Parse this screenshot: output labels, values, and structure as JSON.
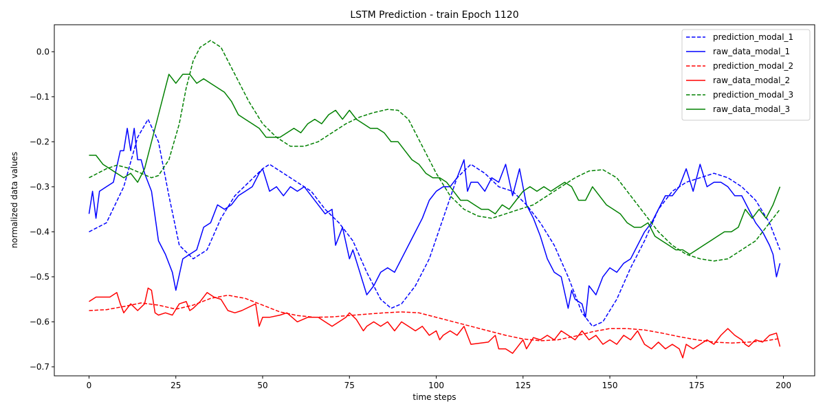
{
  "chart_data": {
    "type": "line",
    "title": "LSTM Prediction - train Epoch 1120",
    "xlabel": "time steps",
    "ylabel": "normalized data values",
    "xlim": [
      -10,
      209
    ],
    "ylim": [
      -0.72,
      0.06
    ],
    "xticks": [
      0,
      25,
      50,
      75,
      100,
      125,
      150,
      175,
      200
    ],
    "yticks": [
      0.0,
      -0.1,
      -0.2,
      -0.3,
      -0.4,
      -0.5,
      -0.6,
      -0.7
    ],
    "ytick_labels": [
      "0.0",
      "−0.1",
      "−0.2",
      "−0.3",
      "−0.4",
      "−0.5",
      "−0.6",
      "−0.7"
    ],
    "grid": false,
    "legend_position": "top-right",
    "colors": {
      "modal_1": "#0000ff",
      "modal_2": "#ff0000",
      "modal_3": "#008000"
    },
    "series": [
      {
        "name": "prediction_modal_1",
        "color": "#0000ff",
        "style": "dashed",
        "x": [
          0,
          5,
          10,
          14,
          17,
          20,
          23,
          26,
          30,
          34,
          38,
          42,
          46,
          50,
          52,
          56,
          60,
          64,
          68,
          72,
          76,
          80,
          84,
          87,
          90,
          94,
          98,
          102,
          106,
          110,
          114,
          118,
          122,
          126,
          130,
          134,
          138,
          142,
          145,
          148,
          152,
          156,
          160,
          164,
          168,
          172,
          176,
          180,
          184,
          188,
          192,
          196,
          199
        ],
        "y": [
          -0.4,
          -0.38,
          -0.3,
          -0.19,
          -0.15,
          -0.2,
          -0.32,
          -0.43,
          -0.46,
          -0.44,
          -0.37,
          -0.32,
          -0.29,
          -0.26,
          -0.25,
          -0.27,
          -0.29,
          -0.31,
          -0.35,
          -0.38,
          -0.42,
          -0.49,
          -0.55,
          -0.57,
          -0.56,
          -0.52,
          -0.46,
          -0.37,
          -0.28,
          -0.25,
          -0.27,
          -0.3,
          -0.31,
          -0.34,
          -0.38,
          -0.43,
          -0.5,
          -0.58,
          -0.61,
          -0.6,
          -0.55,
          -0.48,
          -0.42,
          -0.35,
          -0.31,
          -0.29,
          -0.28,
          -0.27,
          -0.28,
          -0.3,
          -0.33,
          -0.38,
          -0.44
        ]
      },
      {
        "name": "raw_data_modal_1",
        "color": "#0000ff",
        "style": "solid",
        "x": [
          0,
          1,
          2,
          3,
          5,
          7,
          9,
          10,
          11,
          12,
          13,
          14,
          15,
          16,
          18,
          20,
          22,
          24,
          25,
          27,
          29,
          31,
          33,
          35,
          37,
          39,
          41,
          43,
          45,
          47,
          49,
          50,
          52,
          54,
          56,
          58,
          60,
          62,
          64,
          66,
          68,
          70,
          71,
          73,
          75,
          76,
          78,
          80,
          82,
          84,
          86,
          88,
          90,
          92,
          94,
          96,
          98,
          100,
          102,
          104,
          106,
          108,
          109,
          110,
          112,
          114,
          116,
          118,
          120,
          122,
          124,
          126,
          128,
          130,
          132,
          134,
          136,
          138,
          139,
          140,
          142,
          143,
          144,
          146,
          148,
          150,
          152,
          154,
          156,
          158,
          160,
          162,
          164,
          166,
          168,
          170,
          172,
          174,
          176,
          178,
          180,
          182,
          184,
          186,
          188,
          190,
          192,
          194,
          196,
          197,
          198,
          199
        ],
        "y": [
          -0.36,
          -0.31,
          -0.37,
          -0.31,
          -0.3,
          -0.29,
          -0.22,
          -0.22,
          -0.17,
          -0.22,
          -0.17,
          -0.24,
          -0.24,
          -0.27,
          -0.31,
          -0.42,
          -0.45,
          -0.49,
          -0.53,
          -0.46,
          -0.45,
          -0.44,
          -0.39,
          -0.38,
          -0.34,
          -0.35,
          -0.34,
          -0.32,
          -0.31,
          -0.3,
          -0.27,
          -0.26,
          -0.31,
          -0.3,
          -0.32,
          -0.3,
          -0.31,
          -0.3,
          -0.32,
          -0.34,
          -0.36,
          -0.35,
          -0.43,
          -0.39,
          -0.46,
          -0.44,
          -0.49,
          -0.54,
          -0.52,
          -0.49,
          -0.48,
          -0.49,
          -0.46,
          -0.43,
          -0.4,
          -0.37,
          -0.33,
          -0.31,
          -0.3,
          -0.3,
          -0.28,
          -0.24,
          -0.31,
          -0.29,
          -0.29,
          -0.31,
          -0.28,
          -0.29,
          -0.25,
          -0.32,
          -0.26,
          -0.34,
          -0.37,
          -0.41,
          -0.46,
          -0.49,
          -0.5,
          -0.57,
          -0.53,
          -0.55,
          -0.56,
          -0.59,
          -0.52,
          -0.54,
          -0.5,
          -0.48,
          -0.49,
          -0.47,
          -0.46,
          -0.43,
          -0.4,
          -0.38,
          -0.35,
          -0.32,
          -0.32,
          -0.3,
          -0.26,
          -0.31,
          -0.25,
          -0.3,
          -0.29,
          -0.29,
          -0.3,
          -0.32,
          -0.32,
          -0.35,
          -0.38,
          -0.4,
          -0.43,
          -0.45,
          -0.5,
          -0.47
        ]
      },
      {
        "name": "prediction_modal_2",
        "color": "#ff0000",
        "style": "dashed",
        "x": [
          0,
          5,
          10,
          15,
          20,
          25,
          30,
          35,
          40,
          45,
          50,
          55,
          60,
          65,
          70,
          75,
          80,
          85,
          90,
          95,
          100,
          105,
          110,
          115,
          120,
          125,
          130,
          135,
          140,
          145,
          150,
          155,
          160,
          165,
          170,
          175,
          180,
          185,
          190,
          195,
          199
        ],
        "y": [
          -0.575,
          -0.573,
          -0.566,
          -0.558,
          -0.563,
          -0.572,
          -0.563,
          -0.548,
          -0.541,
          -0.548,
          -0.563,
          -0.578,
          -0.586,
          -0.59,
          -0.589,
          -0.586,
          -0.583,
          -0.58,
          -0.578,
          -0.58,
          -0.59,
          -0.6,
          -0.61,
          -0.62,
          -0.63,
          -0.638,
          -0.642,
          -0.64,
          -0.632,
          -0.622,
          -0.615,
          -0.615,
          -0.618,
          -0.625,
          -0.633,
          -0.64,
          -0.645,
          -0.647,
          -0.645,
          -0.642,
          -0.637
        ]
      },
      {
        "name": "raw_data_modal_2",
        "color": "#ff0000",
        "style": "solid",
        "x": [
          0,
          2,
          4,
          6,
          8,
          9,
          10,
          12,
          14,
          16,
          17,
          18,
          19,
          20,
          22,
          24,
          26,
          28,
          29,
          30,
          32,
          34,
          36,
          38,
          40,
          42,
          44,
          48,
          49,
          50,
          52,
          55,
          57,
          60,
          63,
          66,
          68,
          70,
          72,
          74,
          75,
          77,
          79,
          80,
          82,
          84,
          86,
          88,
          89,
          90,
          92,
          94,
          96,
          98,
          100,
          101,
          102,
          104,
          106,
          108,
          110,
          115,
          117,
          118,
          120,
          122,
          124,
          125,
          126,
          128,
          130,
          132,
          134,
          136,
          138,
          140,
          142,
          144,
          146,
          148,
          150,
          152,
          154,
          156,
          158,
          160,
          162,
          164,
          166,
          168,
          170,
          171,
          172,
          174,
          176,
          178,
          180,
          182,
          184,
          186,
          188,
          189,
          190,
          192,
          194,
          196,
          198,
          199
        ],
        "y": [
          -0.555,
          -0.545,
          -0.545,
          -0.545,
          -0.535,
          -0.56,
          -0.58,
          -0.56,
          -0.575,
          -0.56,
          -0.525,
          -0.53,
          -0.58,
          -0.585,
          -0.58,
          -0.585,
          -0.56,
          -0.555,
          -0.575,
          -0.57,
          -0.555,
          -0.535,
          -0.545,
          -0.55,
          -0.575,
          -0.58,
          -0.575,
          -0.56,
          -0.61,
          -0.59,
          -0.59,
          -0.585,
          -0.58,
          -0.6,
          -0.59,
          -0.59,
          -0.6,
          -0.61,
          -0.6,
          -0.59,
          -0.58,
          -0.595,
          -0.62,
          -0.61,
          -0.6,
          -0.61,
          -0.6,
          -0.62,
          -0.61,
          -0.6,
          -0.61,
          -0.62,
          -0.61,
          -0.63,
          -0.62,
          -0.64,
          -0.63,
          -0.62,
          -0.63,
          -0.61,
          -0.65,
          -0.645,
          -0.63,
          -0.66,
          -0.66,
          -0.67,
          -0.65,
          -0.64,
          -0.66,
          -0.635,
          -0.64,
          -0.63,
          -0.64,
          -0.62,
          -0.63,
          -0.64,
          -0.62,
          -0.64,
          -0.63,
          -0.65,
          -0.64,
          -0.65,
          -0.63,
          -0.64,
          -0.62,
          -0.65,
          -0.66,
          -0.645,
          -0.66,
          -0.65,
          -0.66,
          -0.68,
          -0.65,
          -0.66,
          -0.65,
          -0.64,
          -0.65,
          -0.63,
          -0.615,
          -0.63,
          -0.64,
          -0.65,
          -0.655,
          -0.64,
          -0.645,
          -0.63,
          -0.625,
          -0.655
        ]
      },
      {
        "name": "prediction_modal_3",
        "color": "#008000",
        "style": "dashed",
        "x": [
          0,
          5,
          8,
          12,
          15,
          18,
          20,
          23,
          26,
          28,
          30,
          32,
          35,
          38,
          42,
          46,
          50,
          54,
          58,
          62,
          66,
          70,
          74,
          78,
          82,
          86,
          89,
          92,
          96,
          100,
          104,
          108,
          112,
          116,
          120,
          124,
          128,
          132,
          136,
          140,
          144,
          148,
          152,
          156,
          160,
          164,
          168,
          172,
          176,
          180,
          184,
          188,
          192,
          196,
          199
        ],
        "y": [
          -0.28,
          -0.26,
          -0.252,
          -0.26,
          -0.27,
          -0.28,
          -0.275,
          -0.24,
          -0.16,
          -0.08,
          -0.02,
          0.01,
          0.025,
          0.01,
          -0.05,
          -0.11,
          -0.16,
          -0.19,
          -0.21,
          -0.21,
          -0.2,
          -0.18,
          -0.16,
          -0.145,
          -0.135,
          -0.128,
          -0.13,
          -0.15,
          -0.21,
          -0.27,
          -0.32,
          -0.35,
          -0.365,
          -0.37,
          -0.36,
          -0.35,
          -0.34,
          -0.32,
          -0.3,
          -0.28,
          -0.265,
          -0.262,
          -0.28,
          -0.32,
          -0.36,
          -0.4,
          -0.43,
          -0.45,
          -0.46,
          -0.465,
          -0.46,
          -0.44,
          -0.42,
          -0.38,
          -0.35
        ]
      },
      {
        "name": "raw_data_modal_3",
        "color": "#008000",
        "style": "solid",
        "x": [
          0,
          2,
          4,
          6,
          8,
          10,
          12,
          14,
          16,
          18,
          20,
          22,
          23,
          25,
          27,
          29,
          31,
          33,
          35,
          37,
          39,
          41,
          43,
          45,
          47,
          49,
          51,
          53,
          55,
          57,
          59,
          61,
          63,
          65,
          67,
          69,
          71,
          73,
          75,
          77,
          79,
          81,
          83,
          85,
          87,
          89,
          91,
          93,
          95,
          97,
          99,
          101,
          103,
          105,
          107,
          109,
          111,
          113,
          115,
          117,
          119,
          121,
          123,
          125,
          127,
          129,
          131,
          133,
          135,
          137,
          139,
          141,
          143,
          145,
          147,
          149,
          151,
          153,
          155,
          157,
          159,
          161,
          163,
          165,
          167,
          169,
          171,
          173,
          175,
          177,
          179,
          181,
          183,
          185,
          187,
          189,
          191,
          193,
          195,
          197,
          199
        ],
        "y": [
          -0.23,
          -0.23,
          -0.25,
          -0.26,
          -0.27,
          -0.28,
          -0.27,
          -0.29,
          -0.26,
          -0.2,
          -0.14,
          -0.08,
          -0.05,
          -0.07,
          -0.05,
          -0.05,
          -0.07,
          -0.06,
          -0.07,
          -0.08,
          -0.09,
          -0.11,
          -0.14,
          -0.15,
          -0.16,
          -0.17,
          -0.19,
          -0.19,
          -0.19,
          -0.18,
          -0.17,
          -0.18,
          -0.16,
          -0.15,
          -0.16,
          -0.14,
          -0.13,
          -0.15,
          -0.13,
          -0.15,
          -0.16,
          -0.17,
          -0.17,
          -0.18,
          -0.2,
          -0.2,
          -0.22,
          -0.24,
          -0.25,
          -0.27,
          -0.28,
          -0.28,
          -0.29,
          -0.31,
          -0.33,
          -0.33,
          -0.34,
          -0.35,
          -0.35,
          -0.36,
          -0.34,
          -0.35,
          -0.33,
          -0.31,
          -0.3,
          -0.31,
          -0.3,
          -0.31,
          -0.3,
          -0.29,
          -0.3,
          -0.33,
          -0.33,
          -0.3,
          -0.32,
          -0.34,
          -0.35,
          -0.36,
          -0.38,
          -0.39,
          -0.39,
          -0.38,
          -0.41,
          -0.42,
          -0.43,
          -0.44,
          -0.44,
          -0.45,
          -0.44,
          -0.43,
          -0.42,
          -0.41,
          -0.4,
          -0.4,
          -0.39,
          -0.35,
          -0.37,
          -0.35,
          -0.37,
          -0.34,
          -0.3
        ]
      }
    ]
  }
}
